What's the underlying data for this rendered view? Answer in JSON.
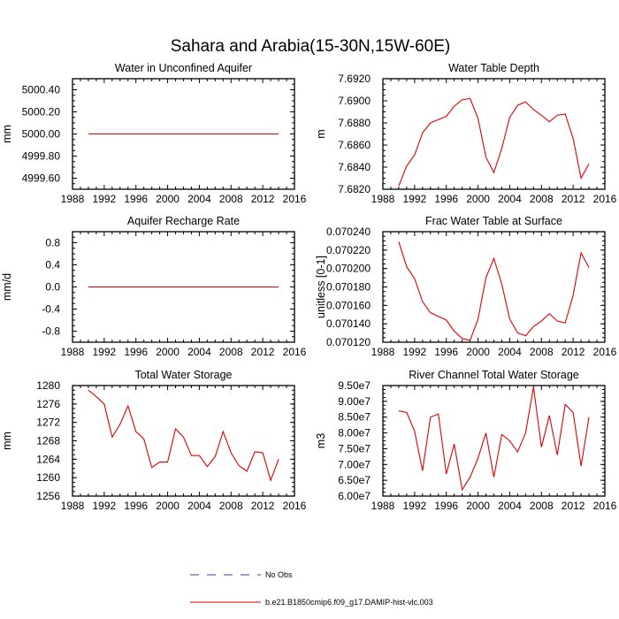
{
  "figure": {
    "title": "Sahara and Arabia(15-30N,15W-60E)"
  },
  "legend": {
    "items": [
      {
        "label": "No Obs",
        "color": "#3a3aa8",
        "style": "dashed"
      },
      {
        "label": "b.e21.B1850cmip6.f09_g17.DAMIP-hist-vlc.003",
        "color": "#e00000",
        "style": "solid"
      }
    ]
  },
  "chart_data": [
    {
      "type": "line",
      "title": "Water in Unconfined Aquifer",
      "ylabel": "mm",
      "xlim": [
        1988,
        2016
      ],
      "ylim": [
        4999.5,
        5000.5
      ],
      "xticks": [
        1988,
        1992,
        1996,
        2000,
        2004,
        2008,
        2012,
        2016
      ],
      "yticks": [
        "4999.60",
        "4999.80",
        "5000.00",
        "5000.20",
        "5000.40"
      ],
      "series": [
        {
          "color": "#e00000",
          "x": [
            1990,
            1991,
            1992,
            1993,
            1994,
            1995,
            1996,
            1997,
            1998,
            1999,
            2000,
            2001,
            2002,
            2003,
            2004,
            2005,
            2006,
            2007,
            2008,
            2009,
            2010,
            2011,
            2012,
            2013,
            2014
          ],
          "y": [
            5000,
            5000,
            5000,
            5000,
            5000,
            5000,
            5000,
            5000,
            5000,
            5000,
            5000,
            5000,
            5000,
            5000,
            5000,
            5000,
            5000,
            5000,
            5000,
            5000,
            5000,
            5000,
            5000,
            5000,
            5000
          ]
        }
      ]
    },
    {
      "type": "line",
      "title": "Water Table Depth",
      "ylabel": "m",
      "xlim": [
        1988,
        2016
      ],
      "ylim": [
        7.682,
        7.692
      ],
      "xticks": [
        1988,
        1992,
        1996,
        2000,
        2004,
        2008,
        2012,
        2016
      ],
      "yticks": [
        "7.6820",
        "7.6840",
        "7.6860",
        "7.6880",
        "7.6900",
        "7.6920"
      ],
      "series": [
        {
          "color": "#e00000",
          "x": [
            1990,
            1991,
            1992,
            1993,
            1994,
            1995,
            1996,
            1997,
            1998,
            1999,
            2000,
            2001,
            2002,
            2003,
            2004,
            2005,
            2006,
            2007,
            2008,
            2009,
            2010,
            2011,
            2012,
            2013,
            2014
          ],
          "y": [
            7.6823,
            7.6841,
            7.6851,
            7.6871,
            7.688,
            7.6883,
            7.6886,
            7.6895,
            7.6901,
            7.6902,
            7.6884,
            7.6849,
            7.6835,
            7.6857,
            7.6885,
            7.6896,
            7.6899,
            7.6892,
            7.6887,
            7.6881,
            7.6887,
            7.6888,
            7.6866,
            7.683,
            7.6843
          ]
        }
      ]
    },
    {
      "type": "line",
      "title": "Aquifer Recharge Rate",
      "ylabel": "mm/d",
      "xlim": [
        1988,
        2016
      ],
      "ylim": [
        -1.0,
        1.0
      ],
      "xticks": [
        1988,
        1992,
        1996,
        2000,
        2004,
        2008,
        2012,
        2016
      ],
      "yticks": [
        "-0.8",
        "-0.4",
        "0.0",
        "0.4",
        "0.8"
      ],
      "series": [
        {
          "color": "#e00000",
          "x": [
            1990,
            1991,
            1992,
            1993,
            1994,
            1995,
            1996,
            1997,
            1998,
            1999,
            2000,
            2001,
            2002,
            2003,
            2004,
            2005,
            2006,
            2007,
            2008,
            2009,
            2010,
            2011,
            2012,
            2013,
            2014
          ],
          "y": [
            0,
            0,
            0,
            0,
            0,
            0,
            0,
            0,
            0,
            0,
            0,
            0,
            0,
            0,
            0,
            0,
            0,
            0,
            0,
            0,
            0,
            0,
            0,
            0,
            0
          ]
        }
      ]
    },
    {
      "type": "line",
      "title": "Frac Water Table at Surface",
      "ylabel": "unitless [0-1]",
      "xlim": [
        1988,
        2016
      ],
      "ylim": [
        0.07012,
        0.07024
      ],
      "xticks": [
        1988,
        1992,
        1996,
        2000,
        2004,
        2008,
        2012,
        2016
      ],
      "yticks": [
        "0.070120",
        "0.070140",
        "0.070160",
        "0.070180",
        "0.070200",
        "0.070220",
        "0.070240"
      ],
      "series": [
        {
          "color": "#e00000",
          "x": [
            1990,
            1991,
            1992,
            1993,
            1994,
            1995,
            1996,
            1997,
            1998,
            1999,
            2000,
            2001,
            2002,
            2003,
            2004,
            2005,
            2006,
            2007,
            2008,
            2009,
            2010,
            2011,
            2012,
            2013,
            2014
          ],
          "y": [
            0.070229,
            0.070202,
            0.070189,
            0.070164,
            0.070152,
            0.070148,
            0.070144,
            0.070132,
            0.070124,
            0.070122,
            0.070145,
            0.07019,
            0.070211,
            0.070183,
            0.070145,
            0.07013,
            0.070127,
            0.070137,
            0.070143,
            0.070151,
            0.070143,
            0.070141,
            0.070171,
            0.070217,
            0.070201
          ]
        }
      ]
    },
    {
      "type": "line",
      "title": "Total Water Storage",
      "ylabel": "mm",
      "xlim": [
        1988,
        2016
      ],
      "ylim": [
        1256,
        1280
      ],
      "xticks": [
        1988,
        1992,
        1996,
        2000,
        2004,
        2008,
        2012,
        2016
      ],
      "yticks": [
        "1256",
        "1260",
        "1264",
        "1268",
        "1272",
        "1276",
        "1280"
      ],
      "series": [
        {
          "color": "#e00000",
          "x": [
            1990,
            1991,
            1992,
            1993,
            1994,
            1995,
            1996,
            1997,
            1998,
            1999,
            2000,
            2001,
            2002,
            2003,
            2004,
            2005,
            2006,
            2007,
            2008,
            2009,
            2010,
            2011,
            2012,
            2013,
            2014
          ],
          "y": [
            1279.0,
            1277.6,
            1276.0,
            1268.8,
            1271.6,
            1275.6,
            1270.0,
            1268.4,
            1262.2,
            1263.4,
            1263.4,
            1270.6,
            1268.8,
            1264.8,
            1264.8,
            1262.4,
            1264.6,
            1270.0,
            1265.4,
            1262.6,
            1261.4,
            1265.6,
            1265.4,
            1259.4,
            1264.0
          ]
        }
      ]
    },
    {
      "type": "line",
      "title": "River Channel Total Water Storage",
      "ylabel": "m3",
      "xlim": [
        1988,
        2016
      ],
      "ylim": [
        60000000.0,
        95000000.0
      ],
      "xticks": [
        1988,
        1992,
        1996,
        2000,
        2004,
        2008,
        2012,
        2016
      ],
      "yticks": [
        "6.00e7",
        "6.50e7",
        "7.00e7",
        "7.50e7",
        "8.00e7",
        "8.50e7",
        "9.00e7",
        "9.50e7"
      ],
      "series": [
        {
          "color": "#e00000",
          "x": [
            1990,
            1991,
            1992,
            1993,
            1994,
            1995,
            1996,
            1997,
            1998,
            1999,
            2000,
            2001,
            2002,
            2003,
            2004,
            2005,
            2006,
            2007,
            2008,
            2009,
            2010,
            2011,
            2012,
            2013,
            2014
          ],
          "y": [
            87000000.0,
            86500000.0,
            80500000.0,
            68000000.0,
            85000000.0,
            86000000.0,
            67000000.0,
            76500000.0,
            62000000.0,
            66000000.0,
            72000000.0,
            80000000.0,
            66000000.0,
            79500000.0,
            77500000.0,
            74000000.0,
            80000000.0,
            94500000.0,
            75500000.0,
            85500000.0,
            73000000.0,
            89000000.0,
            86500000.0,
            69500000.0,
            85000000.0
          ]
        }
      ]
    }
  ]
}
